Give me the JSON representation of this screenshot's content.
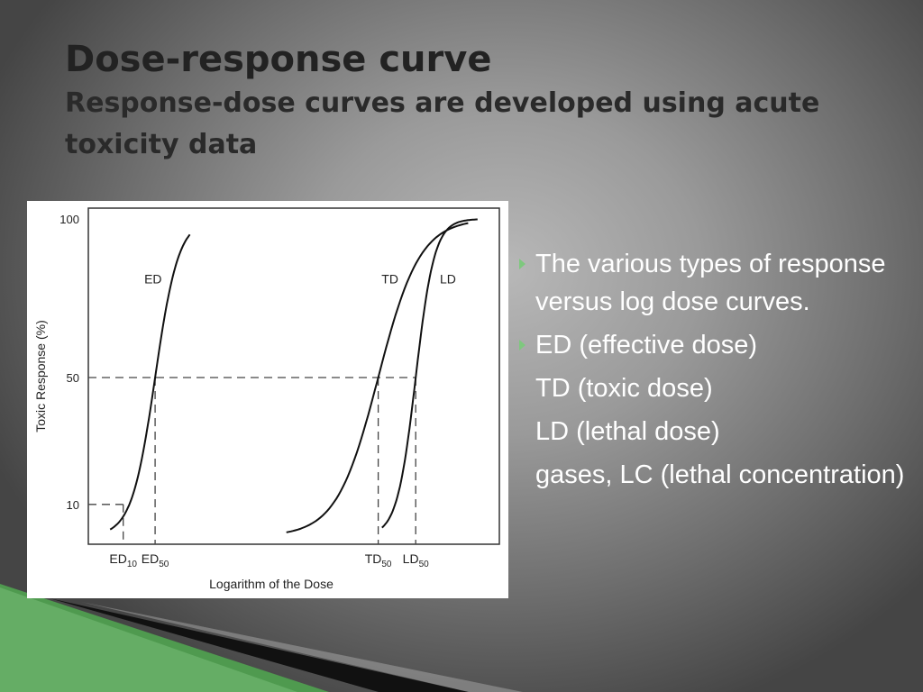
{
  "slide": {
    "title": "Dose-response curve",
    "subtitle": "Response-dose curves are developed using acute toxicity data"
  },
  "bullets": [
    {
      "text": "The various types of response versus log dose curves.",
      "marker": true
    },
    {
      "text": "ED (effective dose)",
      "marker": true
    },
    {
      "text": "TD (toxic dose)",
      "marker": false
    },
    {
      "text": "LD (lethal dose)",
      "marker": false
    },
    {
      "text": "gases, LC (lethal concentration)",
      "marker": false
    }
  ],
  "colors": {
    "accent_green": "#7ec87e"
  },
  "chart_data": {
    "type": "line",
    "ylabel": "Toxic Response (%)",
    "xlabel": "Logarithm of the Dose",
    "y_ticks": [
      "100",
      "50",
      "10"
    ],
    "x_ticks": [
      {
        "base": "ED",
        "sub": "10"
      },
      {
        "base": "ED",
        "sub": "50"
      },
      {
        "base": "TD",
        "sub": "50"
      },
      {
        "base": "LD",
        "sub": "50"
      }
    ],
    "series": [
      {
        "name": "ED",
        "x50": 0.26,
        "steep": 16,
        "xstart": 0.02,
        "xend": 0.445
      },
      {
        "name": "TD",
        "x50": 1.45,
        "steep": 9,
        "xstart": 0.96,
        "xend": 1.93
      },
      {
        "name": "LD",
        "x50": 1.65,
        "steep": 20,
        "xstart": 1.47,
        "xend": 1.98
      }
    ],
    "ref_points": [
      {
        "x": 0.09,
        "y": 10,
        "label": "ED10"
      },
      {
        "x": 0.26,
        "y": 50,
        "label": "ED50"
      },
      {
        "x": 1.45,
        "y": 50,
        "label": "TD50"
      },
      {
        "x": 1.65,
        "y": 50,
        "label": "LD50"
      }
    ],
    "ylim": [
      0,
      100
    ],
    "xlim": [
      0,
      2
    ],
    "grid": false
  }
}
